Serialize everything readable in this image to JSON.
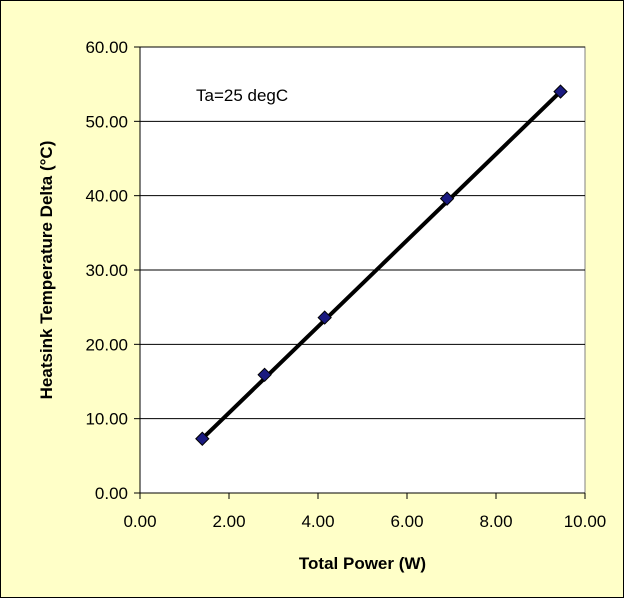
{
  "chart_data": {
    "type": "scatter",
    "title": "",
    "xlabel": "Total Power (W)",
    "ylabel": "Heatsink Temperature Delta (°C)",
    "xlim": [
      0,
      10
    ],
    "ylim": [
      0,
      60
    ],
    "x_ticks": [
      "0.00",
      "2.00",
      "4.00",
      "6.00",
      "8.00",
      "10.00"
    ],
    "y_ticks": [
      "0.00",
      "10.00",
      "20.00",
      "30.00",
      "40.00",
      "50.00",
      "60.00"
    ],
    "grid": {
      "y_major": true,
      "x_major": false
    },
    "annotation": "Ta=25 degC",
    "series": [
      {
        "x": [
          1.4,
          2.8,
          4.15,
          6.9,
          9.45
        ],
        "y": [
          7.3,
          15.9,
          23.6,
          39.6,
          54.0
        ],
        "marker": "diamond",
        "marker_color": "#1a1a80"
      }
    ],
    "trendline": {
      "x_start": 1.4,
      "y_start": 7.3,
      "x_end": 9.45,
      "y_end": 54.0,
      "color": "#000000"
    },
    "colors": {
      "background": "#ffffc8",
      "plot_area": "#ffffff",
      "line": "#000000"
    }
  }
}
